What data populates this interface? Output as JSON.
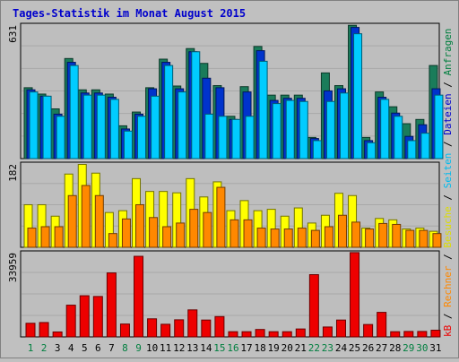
{
  "title": "Tages-Statistik im Monat August 2015",
  "colors": {
    "background": "#c0c0c0",
    "plot_background": "#bebebe",
    "border": "#000000",
    "title": "#0000cc",
    "weekday_label": "#000000",
    "weekend_label": "#007f3f",
    "requests": "#1a7c5a",
    "files": "#0033cc",
    "pages": "#00ccff",
    "visits": "#ffff00",
    "sites": "#ff8800",
    "kbytes": "#ee0000"
  },
  "right_label_parts": [
    {
      "text": "Anfragen",
      "color": "#007f3f"
    },
    {
      "text": " / ",
      "color": "#000000"
    },
    {
      "text": "Dateien",
      "color": "#0000cc"
    },
    {
      "text": " / ",
      "color": "#000000"
    },
    {
      "text": "Seiten",
      "color": "#00bbee"
    },
    {
      "text": " / ",
      "color": "#000000"
    },
    {
      "text": "Besuche",
      "color": "#dddd00"
    },
    {
      "text": " / ",
      "color": "#000000"
    },
    {
      "text": "Rechner",
      "color": "#ff8800"
    },
    {
      "text": " / ",
      "color": "#000000"
    },
    {
      "text": "kB",
      "color": "#ee0000"
    }
  ],
  "chart_data": [
    {
      "type": "bar",
      "ymax_label": "631",
      "ylim": [
        0,
        631
      ],
      "grid": true,
      "categories": [
        "1",
        "2",
        "3",
        "4",
        "5",
        "6",
        "7",
        "8",
        "9",
        "10",
        "11",
        "12",
        "13",
        "14",
        "15",
        "16",
        "17",
        "18",
        "19",
        "20",
        "21",
        "22",
        "23",
        "24",
        "25",
        "26",
        "27",
        "28",
        "29",
        "30",
        "31"
      ],
      "weekend_days": [
        "1",
        "2",
        "8",
        "9",
        "15",
        "16",
        "22",
        "23",
        "29",
        "30"
      ],
      "series": [
        {
          "name": "Anfragen",
          "values": [
            335,
            305,
            235,
            473,
            325,
            325,
            305,
            155,
            220,
            335,
            470,
            343,
            520,
            450,
            345,
            200,
            340,
            530,
            300,
            300,
            300,
            100,
            405,
            345,
            630,
            100,
            315,
            245,
            165,
            185,
            440
          ]
        },
        {
          "name": "Dateien",
          "values": [
            325,
            295,
            210,
            455,
            310,
            310,
            290,
            140,
            210,
            330,
            455,
            330,
            505,
            380,
            335,
            185,
            315,
            510,
            275,
            285,
            285,
            95,
            320,
            330,
            620,
            85,
            290,
            215,
            105,
            160,
            330
          ]
        },
        {
          "name": "Seiten",
          "values": [
            315,
            295,
            200,
            440,
            300,
            300,
            280,
            130,
            200,
            295,
            440,
            315,
            505,
            210,
            200,
            185,
            200,
            460,
            260,
            275,
            270,
            85,
            270,
            310,
            590,
            75,
            280,
            200,
            85,
            120,
            300
          ]
        }
      ]
    },
    {
      "type": "bar",
      "ymax_label": "182",
      "ylim": [
        0,
        182
      ],
      "grid": true,
      "categories": [
        "1",
        "2",
        "3",
        "4",
        "5",
        "6",
        "7",
        "8",
        "9",
        "10",
        "11",
        "12",
        "13",
        "14",
        "15",
        "16",
        "17",
        "18",
        "19",
        "20",
        "21",
        "22",
        "23",
        "24",
        "25",
        "26",
        "27",
        "28",
        "29",
        "30",
        "31"
      ],
      "series": [
        {
          "name": "Besuche",
          "values": [
            93,
            93,
            68,
            160,
            181,
            162,
            76,
            80,
            150,
            122,
            122,
            119,
            150,
            110,
            143,
            80,
            102,
            80,
            83,
            68,
            86,
            53,
            70,
            118,
            113,
            42,
            63,
            60,
            40,
            42,
            35
          ]
        },
        {
          "name": "Rechner",
          "values": [
            42,
            45,
            45,
            113,
            135,
            113,
            30,
            62,
            93,
            65,
            45,
            53,
            83,
            76,
            131,
            60,
            60,
            42,
            40,
            40,
            42,
            37,
            45,
            70,
            55,
            40,
            52,
            50,
            37,
            37,
            30
          ]
        }
      ]
    },
    {
      "type": "bar",
      "ymax_label": "33959",
      "ylim": [
        0,
        33959
      ],
      "grid": true,
      "categories": [
        "1",
        "2",
        "3",
        "4",
        "5",
        "6",
        "7",
        "8",
        "9",
        "10",
        "11",
        "12",
        "13",
        "14",
        "15",
        "16",
        "17",
        "18",
        "19",
        "20",
        "21",
        "22",
        "23",
        "24",
        "25",
        "26",
        "27",
        "28",
        "29",
        "30",
        "31"
      ],
      "series": [
        {
          "name": "kB",
          "values": [
            5500,
            5800,
            2000,
            12800,
            16600,
            16300,
            25800,
            5200,
            32500,
            7300,
            5100,
            6900,
            10900,
            6800,
            8200,
            2100,
            2100,
            3000,
            2100,
            2100,
            3200,
            25100,
            4000,
            6800,
            34000,
            5000,
            9900,
            2100,
            2200,
            2200,
            2700
          ]
        }
      ]
    }
  ]
}
